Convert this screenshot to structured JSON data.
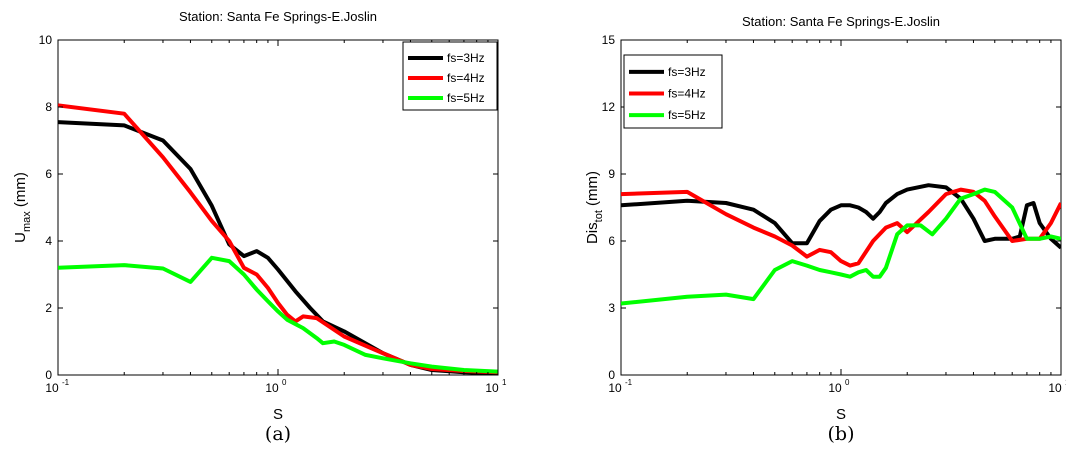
{
  "chart_data": [
    {
      "type": "line",
      "panel_label": "(a)",
      "title": "Station: Santa Fe Springs-E.Joslin",
      "xlabel": "S",
      "ylabel_main": "U",
      "ylabel_sub": "max",
      "ylabel_unit": " (mm)",
      "xscale": "log",
      "xlim": [
        0.1,
        10
      ],
      "ylim": [
        0,
        10
      ],
      "yticks": [
        "0",
        "2",
        "4",
        "6",
        "8",
        "10"
      ],
      "xtick_base": "10",
      "xtick_exps": [
        "-1",
        "0",
        "1"
      ],
      "grid": false,
      "legend_position": "top-right",
      "series": [
        {
          "name": "fs=3Hz",
          "color": "#000000",
          "x": [
            0.1,
            0.2,
            0.3,
            0.4,
            0.5,
            0.6,
            0.7,
            0.8,
            0.9,
            1.0,
            1.2,
            1.4,
            1.6,
            2.0,
            3.0,
            4.0,
            5.0,
            7.0,
            10.0
          ],
          "y": [
            7.55,
            7.45,
            7.0,
            6.15,
            5.05,
            3.9,
            3.55,
            3.7,
            3.5,
            3.15,
            2.5,
            2.0,
            1.6,
            1.3,
            0.65,
            0.3,
            0.15,
            0.08,
            0.05
          ]
        },
        {
          "name": "fs=4Hz",
          "color": "#ff0000",
          "x": [
            0.1,
            0.2,
            0.3,
            0.4,
            0.5,
            0.6,
            0.7,
            0.8,
            0.9,
            1.0,
            1.1,
            1.2,
            1.3,
            1.5,
            2.0,
            3.0,
            4.0,
            5.0,
            7.0,
            10.0
          ],
          "y": [
            8.05,
            7.8,
            6.5,
            5.45,
            4.6,
            4.0,
            3.2,
            3.0,
            2.6,
            2.15,
            1.8,
            1.6,
            1.75,
            1.7,
            1.15,
            0.65,
            0.3,
            0.18,
            0.12,
            0.08
          ]
        },
        {
          "name": "fs=5Hz",
          "color": "#00ff00",
          "x": [
            0.1,
            0.2,
            0.3,
            0.4,
            0.5,
            0.6,
            0.7,
            0.8,
            0.9,
            1.0,
            1.1,
            1.3,
            1.5,
            1.6,
            1.8,
            2.0,
            2.5,
            3.0,
            4.0,
            5.0,
            7.0,
            10.0
          ],
          "y": [
            3.2,
            3.28,
            3.18,
            2.78,
            3.5,
            3.4,
            3.0,
            2.55,
            2.2,
            1.9,
            1.65,
            1.4,
            1.1,
            0.95,
            1.0,
            0.9,
            0.6,
            0.5,
            0.35,
            0.25,
            0.15,
            0.1
          ]
        }
      ]
    },
    {
      "type": "line",
      "panel_label": "(b)",
      "title": "Station: Santa Fe Springs-E.Joslin",
      "xlabel": "S",
      "ylabel_main": "Dis",
      "ylabel_sub": "tot",
      "ylabel_unit": " (mm)",
      "xscale": "log",
      "xlim": [
        0.1,
        10
      ],
      "ylim": [
        0,
        15
      ],
      "yticks": [
        "0",
        "3",
        "6",
        "9",
        "12",
        "15"
      ],
      "xtick_base": "10",
      "xtick_exps": [
        "-1",
        "0",
        "1"
      ],
      "grid": false,
      "legend_position": "top-left",
      "series": [
        {
          "name": "fs=3Hz",
          "color": "#000000",
          "x": [
            0.1,
            0.2,
            0.3,
            0.4,
            0.5,
            0.6,
            0.7,
            0.8,
            0.9,
            1.0,
            1.1,
            1.2,
            1.3,
            1.4,
            1.5,
            1.6,
            1.8,
            2.0,
            2.5,
            3.0,
            3.5,
            4.0,
            4.5,
            5.0,
            6.0,
            6.5,
            7.0,
            7.5,
            8.0,
            9.0,
            10.0
          ],
          "y": [
            7.6,
            7.8,
            7.7,
            7.4,
            6.8,
            5.9,
            5.9,
            6.9,
            7.4,
            7.6,
            7.6,
            7.5,
            7.3,
            7.0,
            7.3,
            7.7,
            8.1,
            8.3,
            8.5,
            8.4,
            7.9,
            7.0,
            6.0,
            6.1,
            6.1,
            6.2,
            7.6,
            7.7,
            6.8,
            6.1,
            5.7
          ]
        },
        {
          "name": "fs=4Hz",
          "color": "#ff0000",
          "x": [
            0.1,
            0.2,
            0.3,
            0.4,
            0.5,
            0.6,
            0.7,
            0.8,
            0.9,
            1.0,
            1.1,
            1.2,
            1.4,
            1.6,
            1.8,
            2.0,
            2.5,
            3.0,
            3.5,
            4.0,
            4.5,
            5.0,
            6.0,
            7.0,
            8.0,
            9.0,
            10.0
          ],
          "y": [
            8.1,
            8.2,
            7.2,
            6.6,
            6.2,
            5.8,
            5.3,
            5.6,
            5.5,
            5.1,
            4.9,
            5.0,
            6.0,
            6.6,
            6.8,
            6.4,
            7.3,
            8.1,
            8.3,
            8.2,
            7.8,
            7.1,
            6.0,
            6.1,
            6.1,
            6.8,
            7.7
          ]
        },
        {
          "name": "fs=5Hz",
          "color": "#00ff00",
          "x": [
            0.1,
            0.2,
            0.3,
            0.4,
            0.5,
            0.6,
            0.7,
            0.8,
            0.9,
            1.0,
            1.1,
            1.2,
            1.3,
            1.4,
            1.5,
            1.6,
            1.8,
            2.0,
            2.3,
            2.6,
            3.0,
            3.5,
            4.0,
            4.5,
            5.0,
            6.0,
            7.0,
            8.0,
            9.0,
            10.0
          ],
          "y": [
            3.2,
            3.5,
            3.6,
            3.4,
            4.7,
            5.1,
            4.9,
            4.7,
            4.6,
            4.5,
            4.4,
            4.6,
            4.7,
            4.4,
            4.4,
            4.8,
            6.3,
            6.7,
            6.7,
            6.3,
            7.0,
            7.9,
            8.1,
            8.3,
            8.2,
            7.5,
            6.1,
            6.1,
            6.2,
            6.1
          ]
        }
      ]
    }
  ]
}
